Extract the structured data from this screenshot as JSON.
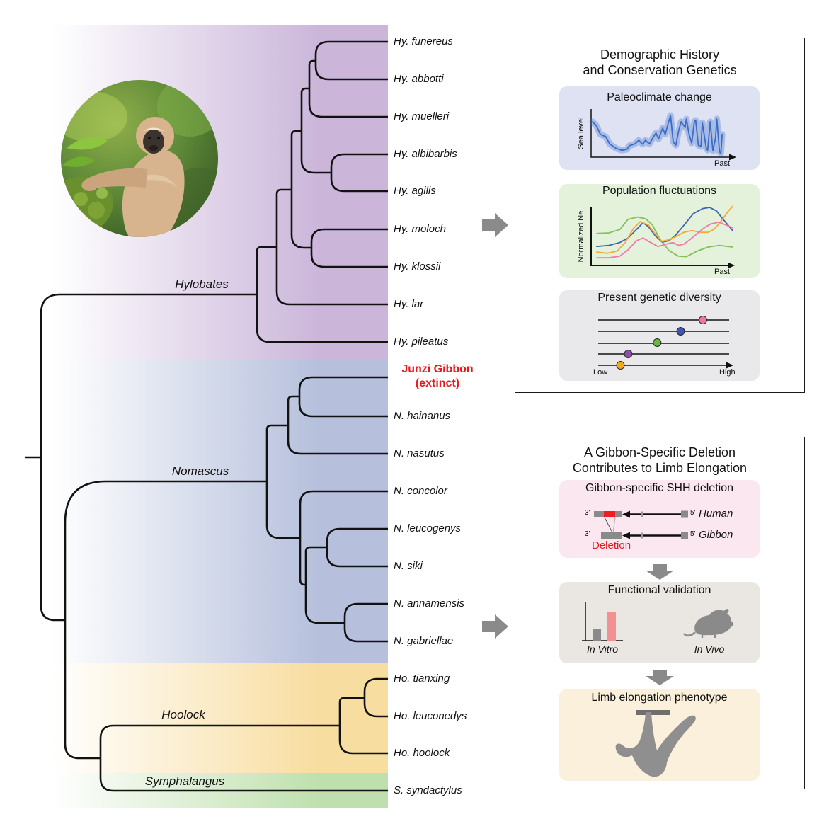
{
  "figure": {
    "tree": {
      "genera": [
        "Hylobates",
        "Nomascus",
        "Hoolock",
        "Symphalangus"
      ],
      "tips": [
        "Hy. funereus",
        "Hy. abbotti",
        "Hy. muelleri",
        "Hy. albibarbis",
        "Hy. agilis",
        "Hy. moloch",
        "Hy. klossii",
        "Hy. lar",
        "Hy. pileatus",
        "N. hainanus",
        "N. nasutus",
        "N. concolor",
        "N. leucogenys",
        "N. siki",
        "N. annamensis",
        "N. gabriellae",
        "Ho. tianxing",
        "Ho. leuconedys",
        "Ho. hoolock",
        "S. syndactylus"
      ],
      "extinct_tip": {
        "line1": "Junzi Gibbon",
        "line2": "(extinct)"
      },
      "band_colors": {
        "hylobates": "#cbb6da",
        "nomascus": "#b6c0dc",
        "hoolock": "#f8dda0",
        "symphalangus": "#bfe0ae"
      }
    },
    "panel1": {
      "title_line1": "Demographic History",
      "title_line2": "and Conservation Genetics",
      "cards": [
        {
          "title": "Paleoclimate change",
          "ylabel": "Sea level",
          "xlabel": "Past",
          "bg": "#dee2f2"
        },
        {
          "title": "Population fluctuations",
          "ylabel": "Normalized Ne",
          "xlabel": "Past",
          "bg": "#e4f2dc"
        },
        {
          "title": "Present genetic diversity",
          "low_label": "Low",
          "high_label": "High",
          "bg": "#e9e9ec"
        }
      ]
    },
    "panel2": {
      "title_line1": "A Gibbon-Specific Deletion",
      "title_line2": "Contributes to Limb Elongation",
      "cards": [
        {
          "title": "Gibbon-specific SHH deletion",
          "bg": "#fbe7f0",
          "deletion_label": "Deletion",
          "rows": [
            {
              "left": "3'",
              "right": "5'",
              "species": "Human"
            },
            {
              "left": "3'",
              "right": "5'",
              "species": "Gibbon"
            }
          ]
        },
        {
          "title": "Functional validation",
          "bg": "#eae6e2",
          "labels": [
            "In Vitro",
            "In Vivo"
          ]
        },
        {
          "title": "Limb elongation phenotype",
          "bg": "#faf0dc"
        }
      ]
    },
    "colors": {
      "extinct_red": "#e8191c",
      "arrow_gray": "#8a8a8a",
      "silhouette_gray": "#8f8f8f"
    },
    "chart_data": [
      {
        "id": "paleoclimate",
        "type": "line",
        "title": "Paleoclimate change",
        "xlabel": "Past",
        "ylabel": "Sea level",
        "axes": "schematic (unlabeled), x = time toward past, y = sea level",
        "series": [
          {
            "name": "sea-level",
            "color": "#3a6cc8",
            "band": true,
            "points": [
              [
                0.01,
                0.72
              ],
              [
                0.04,
                0.63
              ],
              [
                0.07,
                0.44
              ],
              [
                0.11,
                0.39
              ],
              [
                0.14,
                0.23
              ],
              [
                0.19,
                0.13
              ],
              [
                0.23,
                0.09
              ],
              [
                0.27,
                0.11
              ],
              [
                0.29,
                0.19
              ],
              [
                0.33,
                0.23
              ],
              [
                0.36,
                0.31
              ],
              [
                0.39,
                0.22
              ],
              [
                0.41,
                0.31
              ],
              [
                0.44,
                0.23
              ],
              [
                0.47,
                0.38
              ],
              [
                0.49,
                0.47
              ],
              [
                0.51,
                0.34
              ],
              [
                0.54,
                0.58
              ],
              [
                0.56,
                0.44
              ],
              [
                0.58,
                0.66
              ],
              [
                0.6,
                0.86
              ],
              [
                0.62,
                0.28
              ],
              [
                0.64,
                0.2
              ],
              [
                0.66,
                0.5
              ],
              [
                0.68,
                0.72
              ],
              [
                0.71,
                0.59
              ],
              [
                0.72,
                0.78
              ],
              [
                0.74,
                0.44
              ],
              [
                0.76,
                0.25
              ],
              [
                0.78,
                0.72
              ],
              [
                0.79,
                0.75
              ],
              [
                0.81,
                0.2
              ],
              [
                0.83,
                0.17
              ],
              [
                0.84,
                0.7
              ],
              [
                0.87,
                0.13
              ],
              [
                0.88,
                0.09
              ],
              [
                0.9,
                0.72
              ],
              [
                0.92,
                0.08
              ],
              [
                0.94,
                0.36
              ],
              [
                0.95,
                0.78
              ],
              [
                0.97,
                0.05
              ],
              [
                0.98,
                0.02
              ],
              [
                0.99,
                0.44
              ]
            ]
          }
        ]
      },
      {
        "id": "population",
        "type": "line",
        "title": "Population fluctuations",
        "xlabel": "Past",
        "ylabel": "Normalized Ne",
        "axes": "schematic (unlabeled), x = time toward past, y = normalized effective population size",
        "series": [
          {
            "name": "species-green",
            "color": "#86c05a",
            "points": [
              [
                0.0,
                0.54
              ],
              [
                0.09,
                0.55
              ],
              [
                0.17,
                0.61
              ],
              [
                0.23,
                0.79
              ],
              [
                0.3,
                0.83
              ],
              [
                0.36,
                0.8
              ],
              [
                0.41,
                0.69
              ],
              [
                0.46,
                0.46
              ],
              [
                0.53,
                0.24
              ],
              [
                0.6,
                0.14
              ],
              [
                0.66,
                0.13
              ],
              [
                0.74,
                0.23
              ],
              [
                0.82,
                0.3
              ],
              [
                0.9,
                0.33
              ],
              [
                1.0,
                0.3
              ]
            ]
          },
          {
            "name": "species-blue",
            "color": "#3c64b4",
            "points": [
              [
                0.0,
                0.31
              ],
              [
                0.09,
                0.33
              ],
              [
                0.17,
                0.38
              ],
              [
                0.23,
                0.46
              ],
              [
                0.3,
                0.63
              ],
              [
                0.34,
                0.73
              ],
              [
                0.38,
                0.66
              ],
              [
                0.43,
                0.5
              ],
              [
                0.48,
                0.39
              ],
              [
                0.53,
                0.41
              ],
              [
                0.58,
                0.51
              ],
              [
                0.65,
                0.71
              ],
              [
                0.71,
                0.89
              ],
              [
                0.78,
                0.98
              ],
              [
                0.83,
                1.0
              ],
              [
                0.88,
                0.94
              ],
              [
                0.93,
                0.79
              ],
              [
                1.0,
                0.59
              ]
            ]
          },
          {
            "name": "species-orange",
            "color": "#f2a93b",
            "points": [
              [
                0.0,
                0.21
              ],
              [
                0.08,
                0.19
              ],
              [
                0.15,
                0.23
              ],
              [
                0.21,
                0.38
              ],
              [
                0.27,
                0.63
              ],
              [
                0.32,
                0.75
              ],
              [
                0.38,
                0.69
              ],
              [
                0.43,
                0.53
              ],
              [
                0.48,
                0.4
              ],
              [
                0.53,
                0.43
              ],
              [
                0.58,
                0.48
              ],
              [
                0.64,
                0.56
              ],
              [
                0.7,
                0.59
              ],
              [
                0.77,
                0.56
              ],
              [
                0.82,
                0.56
              ],
              [
                0.86,
                0.61
              ],
              [
                0.9,
                0.71
              ],
              [
                0.94,
                0.84
              ],
              [
                0.97,
                0.94
              ],
              [
                1.0,
                1.02
              ]
            ]
          },
          {
            "name": "species-pink",
            "color": "#ef7ba8",
            "points": [
              [
                0.0,
                0.11
              ],
              [
                0.09,
                0.11
              ],
              [
                0.17,
                0.14
              ],
              [
                0.23,
                0.25
              ],
              [
                0.29,
                0.41
              ],
              [
                0.34,
                0.46
              ],
              [
                0.39,
                0.39
              ],
              [
                0.45,
                0.31
              ],
              [
                0.51,
                0.35
              ],
              [
                0.56,
                0.38
              ],
              [
                0.6,
                0.33
              ],
              [
                0.64,
                0.35
              ],
              [
                0.69,
                0.44
              ],
              [
                0.74,
                0.54
              ],
              [
                0.79,
                0.64
              ],
              [
                0.84,
                0.71
              ],
              [
                0.9,
                0.74
              ],
              [
                0.95,
                0.69
              ],
              [
                1.0,
                0.64
              ]
            ]
          }
        ]
      },
      {
        "id": "diversity",
        "type": "scatter",
        "title": "Present genetic diversity",
        "x_axis": {
          "min_label": "Low",
          "max_label": "High"
        },
        "lines": 5,
        "points": [
          {
            "line": 0,
            "value": 0.8,
            "color": "#ee74ac"
          },
          {
            "line": 1,
            "value": 0.63,
            "color": "#3f55ae"
          },
          {
            "line": 2,
            "value": 0.45,
            "color": "#6ab73e"
          },
          {
            "line": 3,
            "value": 0.23,
            "color": "#8d4fa6"
          },
          {
            "line": 4,
            "value": 0.17,
            "color": "#f6a818"
          }
        ]
      }
    ]
  }
}
